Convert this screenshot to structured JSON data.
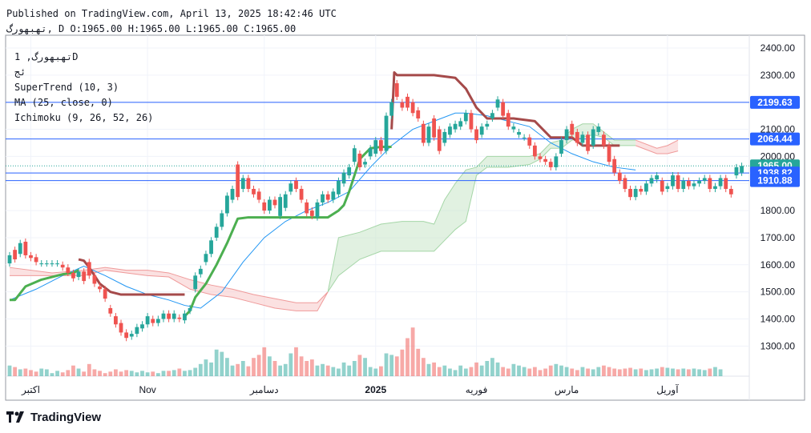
{
  "header": {
    "published": "Published on TradingView.com, April 13, 2025 18:42:46 UTC",
    "ohlc": "تهبهورگ, D O:1965.00 H:1965.00 L:1965.00 C:1965.00"
  },
  "legend": {
    "symbol": "تهبهورگ, 1D",
    "exchange": "ئج",
    "supertrend": "SuperTrend (10, 3)",
    "ma": "MA (25, close, 0)",
    "ichimoku": "Ichimoku (9, 26, 52, 26)"
  },
  "brand": "TradingView",
  "colors": {
    "candle_up": "#26a69a",
    "candle_down": "#ef5350",
    "supertrend_up": "#4caf50",
    "supertrend_down": "#a54a4a",
    "ma": "#2196f3",
    "cloud_bull": "#c8e6c9",
    "cloud_bear": "#f8c8c8",
    "level_line": "#2962ff",
    "label_bg": "#2962ff",
    "current_bg": "#26a69a"
  },
  "chart_data": {
    "type": "candlestick",
    "title": "تهبهورگ, 1D",
    "ylim": [
      1200,
      2450
    ],
    "y_ticks": [
      "2400.00",
      "2300.00",
      "2200.00",
      "2100.00",
      "2000.00",
      "1900.00",
      "1800.00",
      "1700.00",
      "1600.00",
      "1500.00",
      "1400.00",
      "1300.00"
    ],
    "x_labels": [
      {
        "label": "اکتبر",
        "bar": 4
      },
      {
        "label": "Nov",
        "bar": 26
      },
      {
        "label": "دسامبر",
        "bar": 48
      },
      {
        "label": "2025",
        "bar": 69
      },
      {
        "label": "فوریه",
        "bar": 88
      },
      {
        "label": "مارس",
        "bar": 105
      },
      {
        "label": "آوریل",
        "bar": 124
      }
    ],
    "price_labels": [
      {
        "label": "2199.63",
        "value": 2199.63
      },
      {
        "label": "2064.44",
        "value": 2064.44
      },
      {
        "label": "1965.00",
        "value": 1965.0,
        "current": true
      },
      {
        "label": "1938.82",
        "value": 1938.82
      },
      {
        "label": "1910.88",
        "value": 1910.88
      }
    ],
    "candles": [
      [
        1605,
        1635
      ],
      [
        1655,
        1620
      ],
      [
        1640,
        1680
      ],
      [
        1685,
        1635
      ],
      [
        1635,
        1625
      ],
      [
        1628,
        1610
      ],
      [
        1605,
        1605
      ],
      [
        1605,
        1605
      ],
      [
        1605,
        1605
      ],
      [
        1605,
        1605
      ],
      [
        1600,
        1590
      ],
      [
        1590,
        1570
      ],
      [
        1570,
        1550
      ],
      [
        1555,
        1575
      ],
      [
        1575,
        1540
      ],
      [
        1610,
        1560
      ],
      [
        1560,
        1530
      ],
      [
        1520,
        1510
      ],
      [
        1510,
        1475
      ],
      [
        1440,
        1420
      ],
      [
        1410,
        1380
      ],
      [
        1385,
        1350
      ],
      [
        1350,
        1330
      ],
      [
        1335,
        1345
      ],
      [
        1345,
        1370
      ],
      [
        1365,
        1380
      ],
      [
        1380,
        1410
      ],
      [
        1400,
        1385
      ],
      [
        1385,
        1400
      ],
      [
        1400,
        1420
      ],
      [
        1420,
        1400
      ],
      [
        1400,
        1420
      ],
      [
        1405,
        1400
      ],
      [
        1395,
        1420
      ],
      [
        1430,
        1440
      ],
      [
        1510,
        1560
      ],
      [
        1565,
        1585
      ],
      [
        1610,
        1640
      ],
      [
        1640,
        1690
      ],
      [
        1700,
        1740
      ],
      [
        1740,
        1790
      ],
      [
        1790,
        1855
      ],
      [
        1840,
        1880
      ],
      [
        1970,
        1850
      ],
      [
        1880,
        1920
      ],
      [
        1920,
        1880
      ],
      [
        1880,
        1860
      ],
      [
        1870,
        1840
      ],
      [
        1830,
        1800
      ],
      [
        1800,
        1840
      ],
      [
        1840,
        1820
      ],
      [
        1780,
        1850
      ],
      [
        1810,
        1860
      ],
      [
        1870,
        1900
      ],
      [
        1910,
        1880
      ],
      [
        1880,
        1840
      ],
      [
        1830,
        1790
      ],
      [
        1800,
        1780
      ],
      [
        1775,
        1830
      ],
      [
        1830,
        1860
      ],
      [
        1860,
        1840
      ],
      [
        1840,
        1870
      ],
      [
        1860,
        1910
      ],
      [
        1900,
        1940
      ],
      [
        1930,
        1960
      ],
      [
        1980,
        2030
      ],
      [
        2010,
        1960
      ],
      [
        1970,
        1980
      ],
      [
        2000,
        2030
      ],
      [
        2010,
        2060
      ],
      [
        2060,
        2020
      ],
      [
        2020,
        2150
      ],
      [
        2150,
        2200
      ],
      [
        2270,
        2220
      ],
      [
        2200,
        2180
      ],
      [
        2220,
        2180
      ],
      [
        2200,
        2160
      ],
      [
        2170,
        2140
      ],
      [
        2120,
        2050
      ],
      [
        2050,
        2110
      ],
      [
        2140,
        2070
      ],
      [
        2100,
        2020
      ],
      [
        2050,
        2090
      ],
      [
        2080,
        2110
      ],
      [
        2100,
        2120
      ],
      [
        2110,
        2130
      ],
      [
        2130,
        2160
      ],
      [
        2160,
        2100
      ],
      [
        2100,
        2060
      ],
      [
        2080,
        2110
      ],
      [
        2110,
        2120
      ],
      [
        2140,
        2160
      ],
      [
        2180,
        2210
      ],
      [
        2200,
        2150
      ],
      [
        2160,
        2110
      ],
      [
        2100,
        2110
      ],
      [
        2080,
        2090
      ],
      [
        2070,
        2070
      ],
      [
        2070,
        2040
      ],
      [
        2040,
        2000
      ],
      [
        2000,
        1990
      ],
      [
        1990,
        1980
      ],
      [
        1980,
        1960
      ],
      [
        1960,
        2000
      ],
      [
        2010,
        2060
      ],
      [
        2060,
        2100
      ],
      [
        2120,
        2080
      ],
      [
        2090,
        2050
      ],
      [
        2050,
        2080
      ],
      [
        2080,
        2020
      ],
      [
        2040,
        2100
      ],
      [
        2090,
        2110
      ],
      [
        2080,
        2040
      ],
      [
        2040,
        1980
      ],
      [
        1990,
        1940
      ],
      [
        1940,
        1910
      ],
      [
        1920,
        1880
      ],
      [
        1880,
        1850
      ],
      [
        1850,
        1880
      ],
      [
        1880,
        1870
      ],
      [
        1870,
        1900
      ],
      [
        1900,
        1920
      ],
      [
        1915,
        1930
      ],
      [
        1910,
        1870
      ],
      [
        1880,
        1890
      ],
      [
        1890,
        1930
      ],
      [
        1930,
        1880
      ],
      [
        1880,
        1910
      ],
      [
        1910,
        1890
      ],
      [
        1890,
        1900
      ],
      [
        1900,
        1910
      ],
      [
        1910,
        1920
      ],
      [
        1920,
        1880
      ],
      [
        1880,
        1890
      ],
      [
        1890,
        1920
      ],
      [
        1920,
        1880
      ],
      [
        1880,
        1860
      ],
      [
        1930,
        1960
      ],
      [
        1940,
        1965
      ]
    ],
    "volume": [
      14,
      12,
      9,
      10,
      8,
      6,
      10,
      9,
      4,
      7,
      5,
      8,
      14,
      10,
      6,
      16,
      9,
      7,
      4,
      6,
      9,
      6,
      8,
      7,
      5,
      7,
      5,
      6,
      4,
      7,
      7,
      8,
      10,
      7,
      8,
      11,
      16,
      22,
      18,
      35,
      32,
      24,
      14,
      16,
      20,
      13,
      24,
      28,
      38,
      26,
      20,
      14,
      16,
      30,
      38,
      26,
      20,
      22,
      14,
      16,
      14,
      12,
      10,
      18,
      14,
      20,
      28,
      24,
      12,
      10,
      13,
      30,
      28,
      26,
      35,
      50,
      64,
      36,
      24,
      16,
      18,
      12,
      14,
      10,
      8,
      14,
      10,
      12,
      18,
      14,
      20,
      24,
      18,
      12,
      10,
      16,
      14,
      12,
      10,
      12,
      8,
      10,
      14,
      16,
      14,
      12,
      10,
      8,
      12,
      10,
      9,
      12,
      14,
      12,
      10,
      9,
      10,
      11,
      9,
      10,
      8,
      9,
      10,
      12,
      11,
      10,
      9,
      10,
      9,
      10,
      9,
      8,
      10,
      12,
      9
    ],
    "series": [
      {
        "name": "SuperTrend (10, 3)",
        "segments": [
          {
            "trend": "up",
            "points": [
              [
                0,
                1470
              ],
              [
                1,
                1470
              ],
              [
                3,
                1520
              ],
              [
                6,
                1545
              ],
              [
                8,
                1555
              ],
              [
                10,
                1565
              ],
              [
                12,
                1570
              ],
              [
                13,
                1580
              ]
            ]
          },
          {
            "trend": "down",
            "points": [
              [
                13,
                1620
              ],
              [
                14,
                1615
              ],
              [
                15,
                1590
              ],
              [
                16,
                1560
              ],
              [
                17,
                1530
              ],
              [
                19,
                1500
              ],
              [
                21,
                1490
              ],
              [
                28,
                1490
              ],
              [
                32,
                1490
              ],
              [
                33,
                1490
              ]
            ]
          },
          {
            "trend": "up",
            "points": [
              [
                33,
                1410
              ],
              [
                34,
                1430
              ],
              [
                35,
                1480
              ],
              [
                37,
                1530
              ],
              [
                39,
                1600
              ],
              [
                41,
                1680
              ],
              [
                43,
                1770
              ],
              [
                45,
                1775
              ],
              [
                55,
                1775
              ],
              [
                60,
                1775
              ],
              [
                62,
                1800
              ],
              [
                63,
                1820
              ],
              [
                64,
                1870
              ],
              [
                66,
                1990
              ],
              [
                68,
                2030
              ],
              [
                70,
                2035
              ],
              [
                72,
                2035
              ]
            ]
          },
          {
            "trend": "down",
            "points": [
              [
                72,
                2100
              ],
              [
                72.5,
                2310
              ],
              [
                73,
                2300
              ],
              [
                80,
                2300
              ],
              [
                84,
                2290
              ],
              [
                86,
                2250
              ],
              [
                88,
                2180
              ],
              [
                90,
                2140
              ],
              [
                95,
                2140
              ],
              [
                99,
                2130
              ],
              [
                101,
                2090
              ],
              [
                102,
                2070
              ],
              [
                106,
                2070
              ],
              [
                108,
                2040
              ],
              [
                115,
                2040
              ]
            ]
          }
        ]
      },
      {
        "name": "MA (25, close, 0)",
        "points": [
          [
            0,
            1470
          ],
          [
            5,
            1510
          ],
          [
            10,
            1560
          ],
          [
            14,
            1595
          ],
          [
            18,
            1560
          ],
          [
            22,
            1520
          ],
          [
            26,
            1490
          ],
          [
            30,
            1470
          ],
          [
            33,
            1450
          ],
          [
            36,
            1440
          ],
          [
            40,
            1500
          ],
          [
            44,
            1610
          ],
          [
            48,
            1700
          ],
          [
            52,
            1760
          ],
          [
            56,
            1800
          ],
          [
            60,
            1830
          ],
          [
            64,
            1870
          ],
          [
            68,
            1960
          ],
          [
            72,
            2040
          ],
          [
            76,
            2100
          ],
          [
            80,
            2130
          ],
          [
            84,
            2160
          ],
          [
            86,
            2160
          ],
          [
            90,
            2150
          ],
          [
            94,
            2130
          ],
          [
            98,
            2110
          ],
          [
            102,
            2050
          ],
          [
            106,
            2010
          ],
          [
            110,
            1980
          ],
          [
            114,
            1960
          ],
          [
            118,
            1950
          ]
        ]
      },
      {
        "name": "Ichimoku cloud",
        "segments": [
          {
            "trend": "bear",
            "points": [
              [
                0,
                1560,
                1590
              ],
              [
                8,
                1560,
                1570
              ],
              [
                14,
                1560,
                1580
              ],
              [
                18,
                1580,
                1590
              ],
              [
                22,
                1570,
                1580
              ],
              [
                26,
                1560,
                1580
              ],
              [
                30,
                1555,
                1570
              ],
              [
                34,
                1510,
                1545
              ],
              [
                38,
                1490,
                1525
              ],
              [
                42,
                1480,
                1510
              ],
              [
                46,
                1460,
                1490
              ],
              [
                50,
                1440,
                1475
              ],
              [
                54,
                1430,
                1460
              ],
              [
                58,
                1430,
                1460
              ],
              [
                60,
                1500,
                1500
              ]
            ]
          },
          {
            "trend": "bull",
            "points": [
              [
                60,
                1500,
                1500
              ],
              [
                62,
                1560,
                1700
              ],
              [
                66,
                1620,
                1720
              ],
              [
                70,
                1650,
                1750
              ],
              [
                74,
                1650,
                1760
              ],
              [
                78,
                1650,
                1760
              ],
              [
                80,
                1650,
                1750
              ],
              [
                82,
                1690,
                1840
              ],
              [
                84,
                1730,
                1900
              ],
              [
                86,
                1760,
                1950
              ],
              [
                88,
                1930,
                1960
              ],
              [
                90,
                1960,
                2000
              ],
              [
                94,
                1960,
                2000
              ],
              [
                98,
                1970,
                2000
              ],
              [
                100,
                1990,
                2010
              ],
              [
                102,
                2030,
                2050
              ],
              [
                104,
                2030,
                2060
              ],
              [
                106,
                2060,
                2100
              ],
              [
                108,
                2070,
                2120
              ],
              [
                110,
                2080,
                2120
              ],
              [
                112,
                2070,
                2090
              ],
              [
                114,
                2040,
                2060
              ],
              [
                116,
                2040,
                2060
              ],
              [
                118,
                2040,
                2060
              ]
            ]
          },
          {
            "trend": "bear",
            "points": [
              [
                118,
                2040,
                2060
              ],
              [
                122,
                2010,
                2030
              ],
              [
                124,
                2010,
                2040
              ],
              [
                126,
                2020,
                2060
              ]
            ]
          }
        ]
      }
    ]
  }
}
